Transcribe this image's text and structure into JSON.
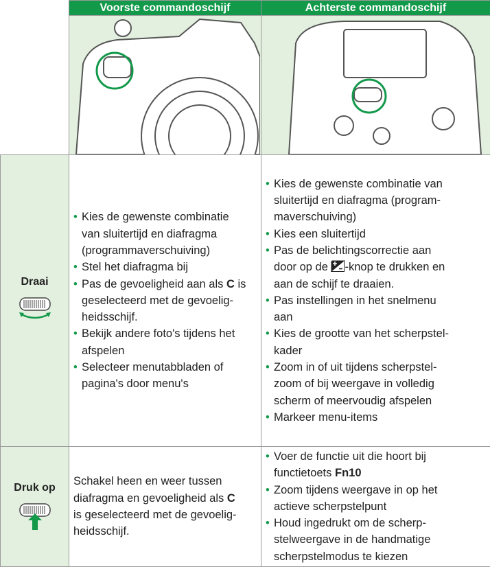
{
  "table": {
    "columns": [
      "Voorste commandoschijf",
      "Achterste commandoschijf"
    ],
    "rows": [
      {
        "label": "Draai",
        "cells": [
          {
            "bullets": [
              [
                "Kies de gewenste combinatie",
                "van sluitertijd en diafragma",
                "(programmaverschuiving)"
              ],
              [
                "Stel het diafragma bij"
              ],
              [
                [
                  "Pas de gevoeligheid aan als ",
                  {
                    "text": "C",
                    "bold": true
                  },
                  " is"
                ],
                "geselecteerd met de gevoelig-",
                "heidsschijf."
              ],
              [
                "Bekijk andere foto's tijdens het",
                "afspelen"
              ],
              [
                "Selecteer menutabbladen of",
                "pagina's door menu's"
              ]
            ]
          },
          {
            "bullets": [
              [
                "Kies de gewenste combinatie van",
                "sluitertijd en diafragma (program-",
                "maverschuiving)"
              ],
              [
                "Kies een sluitertijd"
              ],
              [
                "Pas de belichtingscorrectie aan",
                [
                  "door op de ",
                  {
                    "icon": "exposure-compensation"
                  },
                  "-knop te drukken en"
                ],
                "aan de schijf te draaien."
              ],
              [
                "Pas instellingen in het snelmenu",
                "aan"
              ],
              [
                "Kies de grootte van het scherpstel-",
                "kader"
              ],
              [
                "Zoom in of uit tijdens scherpstel-",
                "zoom of bij weergave in volledig",
                "scherm of meervoudig afspelen"
              ],
              [
                "Markeer menu-items"
              ]
            ]
          }
        ]
      },
      {
        "label": "Druk op",
        "cells": [
          {
            "lines": [
              "Schakel heen en weer tussen",
              [
                "diafragma en gevoeligheid als ",
                {
                  "text": "C",
                  "bold": true
                }
              ],
              "is geselecteerd met de gevoelig-",
              "heidsschijf."
            ]
          },
          {
            "bullets": [
              [
                "Voer de functie uit die hoort bij",
                [
                  "functietoets ",
                  {
                    "text": "Fn10",
                    "bold": true
                  }
                ]
              ],
              [
                "Zoom tijdens weergave in op het",
                "actieve scherpstelpunt"
              ],
              [
                "Houd ingedrukt om de scherp-",
                "stelweergave in de handmatige",
                "scherpstelmodus te kiezen"
              ]
            ]
          }
        ]
      }
    ]
  }
}
